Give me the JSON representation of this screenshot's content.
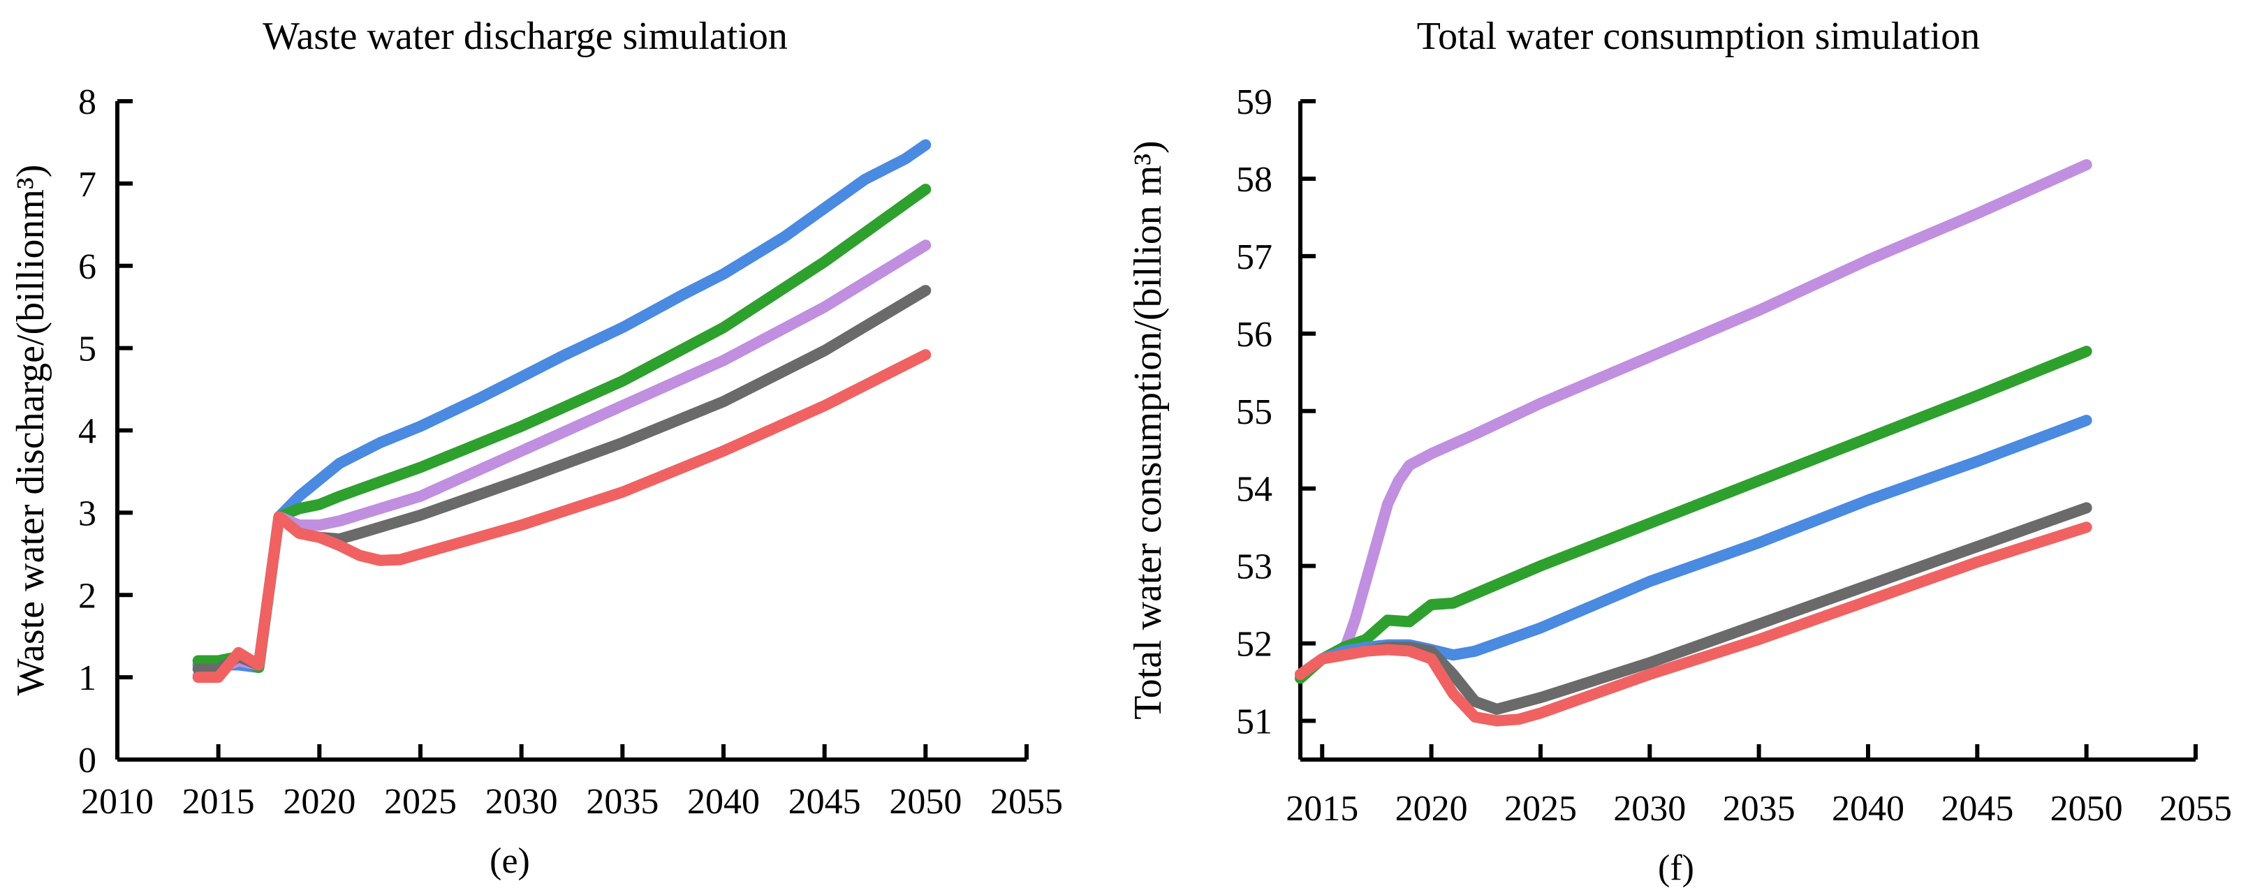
{
  "chart_data": [
    {
      "type": "line",
      "title": "Waste water discharge simulation",
      "xlabel": "",
      "ylabel": "Waste water discharge/(billionm³)",
      "panel_label": "(e)",
      "xlim": [
        2010,
        2055
      ],
      "ylim": [
        0,
        8
      ],
      "xticks": [
        "2010",
        "2015",
        "2020",
        "2025",
        "2030",
        "2035",
        "2040",
        "2045",
        "2050",
        "2055"
      ],
      "yticks": [
        "0",
        "1",
        "2",
        "3",
        "4",
        "5",
        "6",
        "7",
        "8"
      ],
      "grid": false,
      "legend": "none",
      "series": [
        {
          "name": "blue",
          "color": "#4a8ae0",
          "x": [
            2014,
            2015,
            2016,
            2017,
            2018,
            2019,
            2020,
            2021,
            2023,
            2025,
            2028,
            2030,
            2032,
            2035,
            2038,
            2040,
            2043,
            2045,
            2047,
            2049,
            2050
          ],
          "values": [
            1.15,
            1.15,
            1.15,
            1.12,
            2.95,
            3.2,
            3.4,
            3.6,
            3.85,
            4.05,
            4.4,
            4.65,
            4.9,
            5.25,
            5.65,
            5.9,
            6.35,
            6.7,
            7.05,
            7.3,
            7.47
          ]
        },
        {
          "name": "green",
          "color": "#2ea02e",
          "x": [
            2014,
            2015,
            2016,
            2017,
            2018,
            2019,
            2020,
            2021,
            2025,
            2030,
            2035,
            2040,
            2045,
            2050
          ],
          "values": [
            1.2,
            1.2,
            1.25,
            1.12,
            2.95,
            3.05,
            3.1,
            3.2,
            3.55,
            4.05,
            4.6,
            5.25,
            6.05,
            6.93
          ]
        },
        {
          "name": "purple",
          "color": "#c08fe0",
          "x": [
            2014,
            2015,
            2016,
            2017,
            2018,
            2019,
            2020,
            2021,
            2025,
            2030,
            2035,
            2040,
            2045,
            2048,
            2050
          ],
          "values": [
            1.02,
            1.1,
            1.2,
            1.15,
            2.95,
            2.85,
            2.85,
            2.9,
            3.2,
            3.75,
            4.3,
            4.85,
            5.5,
            5.95,
            6.25
          ]
        },
        {
          "name": "gray",
          "color": "#6a6a6a",
          "x": [
            2014,
            2015,
            2016,
            2017,
            2018,
            2019,
            2020,
            2021,
            2022,
            2025,
            2030,
            2035,
            2040,
            2045,
            2050
          ],
          "values": [
            1.1,
            1.1,
            1.25,
            1.15,
            2.95,
            2.75,
            2.7,
            2.68,
            2.75,
            2.97,
            3.4,
            3.85,
            4.35,
            4.97,
            5.7
          ]
        },
        {
          "name": "red",
          "color": "#f06262",
          "x": [
            2014,
            2015,
            2016,
            2017,
            2018,
            2019,
            2020,
            2021,
            2022,
            2023,
            2024,
            2025,
            2030,
            2035,
            2040,
            2045,
            2050
          ],
          "values": [
            1.0,
            1.0,
            1.3,
            1.15,
            2.95,
            2.75,
            2.7,
            2.6,
            2.48,
            2.42,
            2.43,
            2.5,
            2.85,
            3.25,
            3.75,
            4.3,
            4.92
          ]
        }
      ]
    },
    {
      "type": "line",
      "title": "Total water consumption simulation",
      "xlabel": "",
      "ylabel": "Total water consumption/(billion m³)",
      "panel_label": "(f)",
      "xlim": [
        2014,
        2055
      ],
      "ylim": [
        50.5,
        59
      ],
      "xticks": [
        "2015",
        "2020",
        "2025",
        "2030",
        "2035",
        "2040",
        "2045",
        "2050",
        "2055"
      ],
      "yticks": [
        "51",
        "52",
        "53",
        "54",
        "55",
        "56",
        "57",
        "58",
        "59"
      ],
      "grid": false,
      "legend": "none",
      "series": [
        {
          "name": "purple",
          "color": "#c08fe0",
          "x": [
            2014,
            2015,
            2016,
            2016.5,
            2017,
            2017.5,
            2018,
            2018.5,
            2019,
            2020,
            2022,
            2025,
            2030,
            2035,
            2040,
            2045,
            2050
          ],
          "values": [
            51.6,
            51.8,
            51.9,
            52.3,
            52.8,
            53.3,
            53.8,
            54.1,
            54.3,
            54.45,
            54.7,
            55.1,
            55.7,
            56.3,
            56.95,
            57.55,
            58.18
          ]
        },
        {
          "name": "green",
          "color": "#2ea02e",
          "x": [
            2014,
            2015,
            2016,
            2017,
            2018,
            2019,
            2020,
            2021,
            2025,
            2030,
            2035,
            2040,
            2045,
            2050
          ],
          "values": [
            51.55,
            51.8,
            51.95,
            52.05,
            52.3,
            52.28,
            52.5,
            52.52,
            53.0,
            53.55,
            54.1,
            54.65,
            55.2,
            55.77
          ]
        },
        {
          "name": "blue",
          "color": "#4a8ae0",
          "x": [
            2014,
            2015,
            2016,
            2017,
            2018,
            2019,
            2020,
            2021,
            2022,
            2025,
            2030,
            2035,
            2040,
            2045,
            2050
          ],
          "values": [
            51.6,
            51.8,
            51.9,
            51.95,
            51.98,
            51.98,
            51.92,
            51.85,
            51.9,
            52.2,
            52.8,
            53.3,
            53.85,
            54.35,
            54.88
          ]
        },
        {
          "name": "gray",
          "color": "#6a6a6a",
          "x": [
            2014,
            2015,
            2016,
            2017,
            2018,
            2019,
            2020,
            2021,
            2022,
            2023,
            2025,
            2030,
            2035,
            2040,
            2045,
            2050
          ],
          "values": [
            51.6,
            51.8,
            51.85,
            51.9,
            51.95,
            51.95,
            51.9,
            51.6,
            51.25,
            51.15,
            51.3,
            51.75,
            52.25,
            52.75,
            53.25,
            53.75
          ]
        },
        {
          "name": "red",
          "color": "#f06262",
          "x": [
            2014,
            2015,
            2016,
            2017,
            2018,
            2019,
            2020,
            2021,
            2022,
            2023,
            2024,
            2025,
            2030,
            2035,
            2040,
            2045,
            2050
          ],
          "values": [
            51.6,
            51.8,
            51.85,
            51.9,
            51.92,
            51.9,
            51.8,
            51.35,
            51.05,
            51.0,
            51.02,
            51.1,
            51.6,
            52.05,
            52.55,
            53.05,
            53.5
          ]
        }
      ]
    }
  ]
}
